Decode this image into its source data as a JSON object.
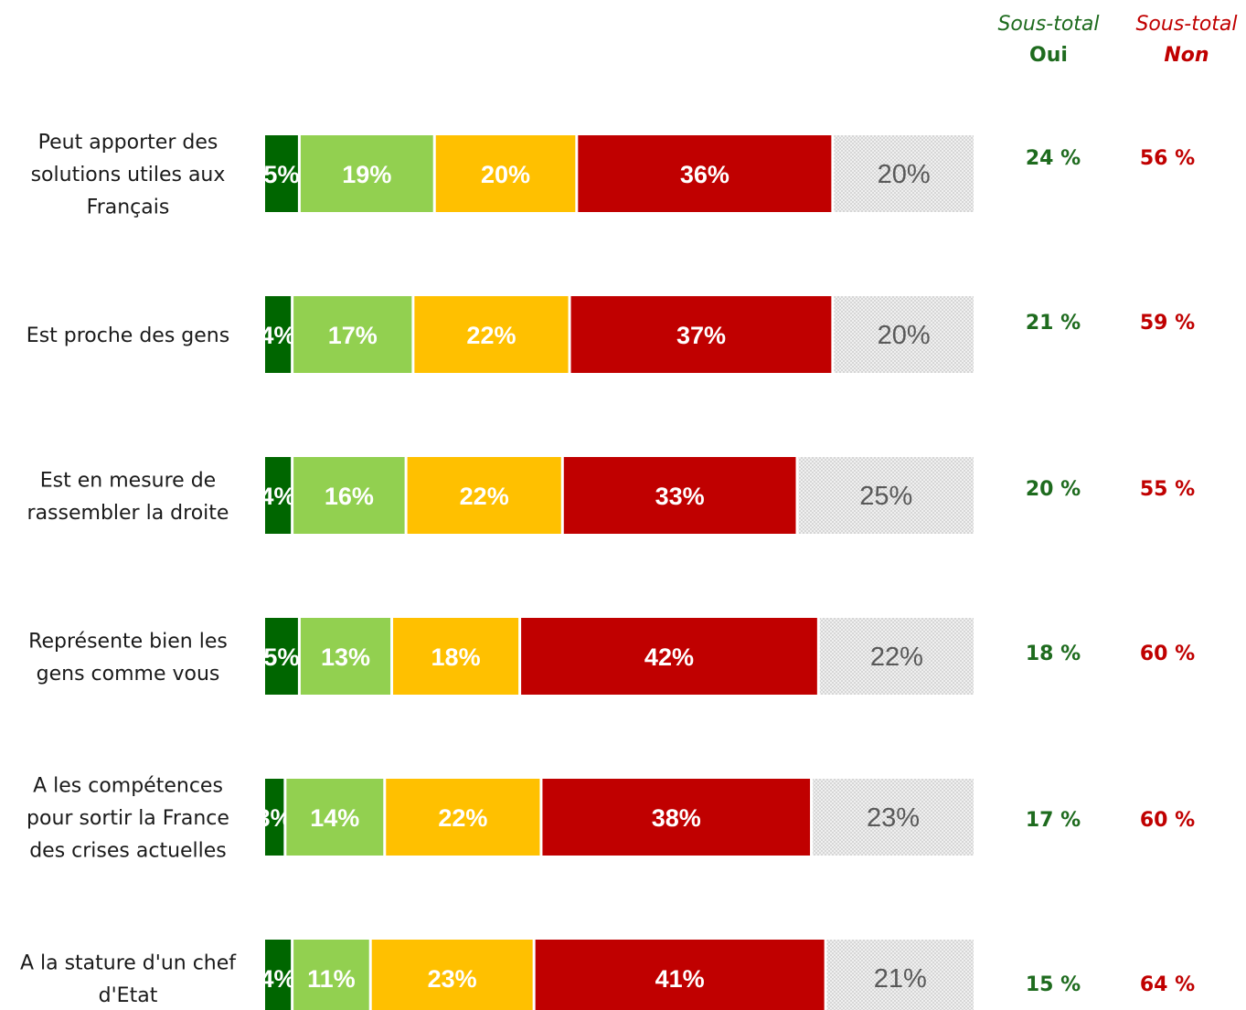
{
  "headers": {
    "oui_line1": "Sous-total",
    "oui_line2": "Oui",
    "non_line1": "Sous-total",
    "non_line2": "Non"
  },
  "chart_data": {
    "type": "bar",
    "orientation": "horizontal",
    "stacked": true,
    "grid": false,
    "legend": "none",
    "xlim": [
      0,
      100
    ],
    "categories": [
      "Peut apporter des solutions utiles aux Français",
      "Est proche des gens",
      "Est en mesure de rassembler la droite",
      "Représente bien les gens comme vous",
      "A les compétences pour sortir la France des crises actuelles",
      "A la stature d'un chef d'Etat"
    ],
    "category_lines": [
      [
        "Peut apporter des",
        "solutions utiles aux",
        "Français"
      ],
      [
        "Est proche des gens"
      ],
      [
        "Est en mesure de",
        "rassembler la droite"
      ],
      [
        "Représente bien les",
        "gens comme vous"
      ],
      [
        "A les compétences",
        "pour sortir la France",
        "des crises actuelles"
      ],
      [
        "A la stature d'un chef",
        "d'Etat"
      ]
    ],
    "series": [
      {
        "values": [
          5,
          4,
          4,
          5,
          3,
          4
        ],
        "color": "#006600",
        "label_color": "#ffffff",
        "label_bold": true
      },
      {
        "values": [
          19,
          17,
          16,
          13,
          14,
          11
        ],
        "color": "#92d050",
        "label_color": "#ffffff",
        "label_bold": true
      },
      {
        "values": [
          20,
          22,
          22,
          18,
          22,
          23
        ],
        "color": "#ffc000",
        "label_color": "#ffffff",
        "label_bold": true
      },
      {
        "values": [
          36,
          37,
          33,
          42,
          38,
          41
        ],
        "color": "#c00000",
        "label_color": "#ffffff",
        "label_bold": true
      },
      {
        "values": [
          20,
          20,
          25,
          22,
          23,
          21
        ],
        "color": "#e0e0e0",
        "pattern": "dotted",
        "label_color": "#595959",
        "label_bold": false
      }
    ],
    "value_suffix": "%",
    "subtotal_oui": [
      "24 %",
      "21 %",
      "20 %",
      "18 %",
      "17 %",
      "15 %"
    ],
    "subtotal_non": [
      "56 %",
      "59 %",
      "55 %",
      "60 %",
      "60 %",
      "64 %"
    ],
    "subtotal_oui_color": "#1e6b1e",
    "subtotal_non_color": "#c00000"
  }
}
